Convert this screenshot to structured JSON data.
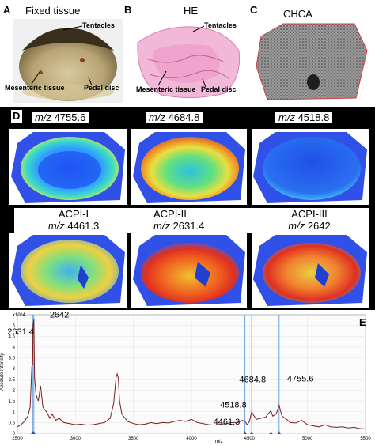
{
  "panelA": {
    "letter": "A",
    "title": "Fixed tissue",
    "annotations": [
      "Tentacles",
      "Mesenteric tissue",
      "Pedal disc"
    ]
  },
  "panelB": {
    "letter": "B",
    "title": "HE",
    "annotations": [
      "Tentacles",
      "Mesenteric tissue",
      "Pedal disc"
    ]
  },
  "panelC": {
    "letter": "C",
    "title": "CHCA"
  },
  "panelD": {
    "letter": "D",
    "images": [
      {
        "prefix": "m/z",
        "value": "4755.6"
      },
      {
        "prefix": "m/z",
        "value": "4684.8"
      },
      {
        "prefix": "m/z",
        "value": "4518.8"
      },
      {
        "name": "ACPI-I",
        "prefix": "m/z",
        "value": "4461.3"
      },
      {
        "name": "ACPI-II",
        "prefix": "m/z",
        "value": "2631.4"
      },
      {
        "name": "ACPI-III",
        "prefix": "m/z",
        "value": "2642"
      }
    ]
  },
  "panelE": {
    "letter": "E"
  },
  "colors": {
    "heat_background": "#3050e8",
    "spectrum_line": "#7a1f1f",
    "marker_line": "#4a8fd0"
  },
  "chart_data": {
    "type": "line",
    "title": "",
    "xlabel": "m/z",
    "ylabel": "Absolute Intensity",
    "xlim": [
      2500,
      5500
    ],
    "ylim": [
      0,
      5.5
    ],
    "x_ticks": [
      2500,
      3000,
      3500,
      4000,
      4500,
      5000,
      5500
    ],
    "y_ticks": [
      0,
      0.5,
      1,
      1.5,
      2,
      2.5,
      3,
      3.5,
      4,
      4.5,
      5
    ],
    "grid": true,
    "scale_note": "x10^4",
    "peak_labels": [
      {
        "text": "2642",
        "x": 2642,
        "y": 5.3
      },
      {
        "text": "2631.4",
        "x": 2631.4,
        "y": 5.1
      },
      {
        "text": "4518.8",
        "x": 4518.8,
        "y": 0.9
      },
      {
        "text": "4461.3",
        "x": 4461.3,
        "y": 0.55
      },
      {
        "text": "4684.8",
        "x": 4684.8,
        "y": 1.05
      },
      {
        "text": "4755.6",
        "x": 4755.6,
        "y": 1.3
      }
    ],
    "series": [
      {
        "x": [
          2500,
          2530,
          2560,
          2590,
          2610,
          2625,
          2631.4,
          2636,
          2642,
          2648,
          2660,
          2680,
          2700,
          2720,
          2750,
          2780,
          2800,
          2830,
          2860,
          2900,
          2950,
          3000,
          3050,
          3100,
          3150,
          3200,
          3250,
          3300,
          3330,
          3350,
          3360,
          3370,
          3380,
          3400,
          3450,
          3500,
          3550,
          3600,
          3650,
          3700,
          3750,
          3800,
          3850,
          3900,
          3950,
          4000,
          4050,
          4100,
          4150,
          4200,
          4250,
          4300,
          4350,
          4400,
          4440,
          4461.3,
          4480,
          4500,
          4518.8,
          4540,
          4560,
          4600,
          4640,
          4660,
          4684.8,
          4700,
          4730,
          4755.6,
          4780,
          4820,
          4850,
          4900,
          4950,
          5000,
          5050,
          5100,
          5150,
          5200,
          5250,
          5300,
          5350,
          5400,
          5450,
          5500
        ],
        "y": [
          0.3,
          0.4,
          0.55,
          0.8,
          1.2,
          3.1,
          3.2,
          5.0,
          5.3,
          2.6,
          1.8,
          1.5,
          2.2,
          1.2,
          1.0,
          0.7,
          0.9,
          0.6,
          0.7,
          0.5,
          0.45,
          0.4,
          0.42,
          0.38,
          0.4,
          0.45,
          0.5,
          0.7,
          1.4,
          2.6,
          2.75,
          2.55,
          1.5,
          0.9,
          0.55,
          0.45,
          0.4,
          0.42,
          0.5,
          0.45,
          0.5,
          0.48,
          0.55,
          0.6,
          0.55,
          0.65,
          0.5,
          0.45,
          0.4,
          0.38,
          0.42,
          0.45,
          0.5,
          0.5,
          0.6,
          0.55,
          0.4,
          0.55,
          1.0,
          0.8,
          0.65,
          0.7,
          0.75,
          0.9,
          1.05,
          0.8,
          0.9,
          1.3,
          0.8,
          0.65,
          0.5,
          0.48,
          0.6,
          0.4,
          0.35,
          0.3,
          0.4,
          0.3,
          0.28,
          0.3,
          0.25,
          0.28,
          0.22,
          0.2
        ]
      }
    ]
  }
}
